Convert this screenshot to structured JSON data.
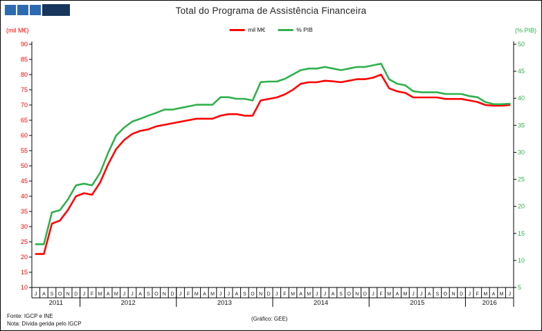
{
  "meta": {
    "title": "Total do Programa de Assistência Financeira"
  },
  "logo": {
    "navy": "#17365d",
    "blue": "#2e6ab0"
  },
  "legend": {
    "items": [
      {
        "label": "mil M€",
        "color": "#ff0000"
      },
      {
        "label": "% PIB",
        "color": "#2fb04c"
      }
    ]
  },
  "footer": {
    "fonte": "Fonte: IGCP e INE",
    "nota": "Nota: Dívida gerida pelo IGCP",
    "grafico": "(Gráfico: GEE)"
  },
  "chart_data": {
    "type": "line",
    "title": "Total do Programa de Assistência Financeira",
    "grid": false,
    "legend_position": "top",
    "x_months": [
      "J",
      "A",
      "S",
      "O",
      "N",
      "D",
      "J",
      "F",
      "M",
      "A",
      "M",
      "J",
      "J",
      "A",
      "S",
      "O",
      "N",
      "D",
      "J",
      "F",
      "M",
      "A",
      "M",
      "J",
      "J",
      "A",
      "S",
      "O",
      "N",
      "D",
      "J",
      "F",
      "M",
      "A",
      "M",
      "J",
      "J",
      "A",
      "S",
      "O",
      "N",
      "D",
      "J",
      "F",
      "M",
      "A",
      "M",
      "J",
      "J",
      "A",
      "S",
      "O",
      "N",
      "D",
      "J",
      "F",
      "M",
      "A",
      "M",
      "J"
    ],
    "year_groups": [
      {
        "label": "2011",
        "months": 6
      },
      {
        "label": "2012",
        "months": 12
      },
      {
        "label": "2013",
        "months": 12
      },
      {
        "label": "2014",
        "months": 12
      },
      {
        "label": "2015",
        "months": 12
      },
      {
        "label": "2016",
        "months": 6
      }
    ],
    "left_axis": {
      "caption": "(mil M€)",
      "min": 10,
      "max": 90,
      "step": 5,
      "color": "#ff0000",
      "ticks": [
        90,
        85,
        80,
        75,
        70,
        65,
        60,
        55,
        50,
        45,
        40,
        35,
        30,
        25,
        20,
        15,
        10
      ]
    },
    "right_axis": {
      "caption": "(% PIB)",
      "min": 5,
      "max": 50,
      "step": 5,
      "color": "#2fb04c",
      "ticks": [
        50,
        45,
        40,
        35,
        30,
        25,
        20,
        15,
        10,
        5
      ]
    },
    "series": [
      {
        "name": "mil M€",
        "axis": "left",
        "color": "#ff0000",
        "values": [
          21,
          21,
          31,
          32,
          35.5,
          40,
          41,
          40.5,
          44.5,
          50.5,
          55.5,
          58.5,
          60.5,
          61.5,
          62,
          63,
          63.5,
          64,
          64.5,
          65,
          65.5,
          65.5,
          65.5,
          66.5,
          67,
          67,
          66.5,
          66.5,
          71.5,
          72,
          72.5,
          73.5,
          75,
          77,
          77.5,
          77.5,
          78,
          77.8,
          77.5,
          78,
          78.5,
          78.5,
          79,
          80,
          75.5,
          74.5,
          74,
          72.5,
          72.5,
          72.5,
          72.5,
          72,
          72,
          72,
          71.5,
          71,
          70,
          69.8,
          69.8,
          70
        ]
      },
      {
        "name": "% PIB",
        "axis": "right",
        "color": "#2fb04c",
        "values": [
          13,
          13,
          18.9,
          19.3,
          21.3,
          23.9,
          24.2,
          23.9,
          26.2,
          29.9,
          33.1,
          34.6,
          35.7,
          36.2,
          36.8,
          37.3,
          37.9,
          37.9,
          38.2,
          38.5,
          38.8,
          38.8,
          38.8,
          40.2,
          40.2,
          39.9,
          39.9,
          39.6,
          43,
          43.1,
          43.1,
          43.6,
          44.4,
          45.2,
          45.5,
          45.5,
          45.8,
          45.5,
          45.2,
          45.5,
          45.8,
          45.8,
          46.1,
          46.4,
          43.5,
          42.7,
          42.4,
          41.3,
          41.1,
          41.1,
          41.1,
          40.8,
          40.8,
          40.8,
          40.4,
          40.2,
          39.3,
          38.9,
          38.9,
          39
        ]
      }
    ]
  }
}
